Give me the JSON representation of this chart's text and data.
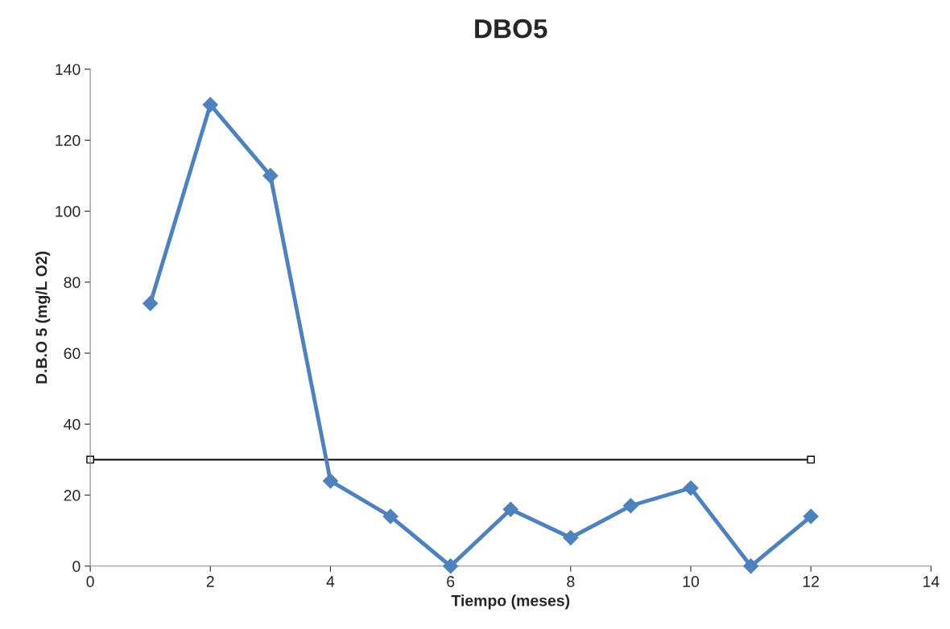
{
  "chart_data": {
    "type": "line",
    "title": "DBO5",
    "xlabel": "Tiempo (meses)",
    "ylabel": "D.B.O 5 (mg/L O2)",
    "x": [
      1,
      2,
      3,
      4,
      5,
      6,
      7,
      8,
      9,
      10,
      11,
      12
    ],
    "series": [
      {
        "color": "#4f81bd",
        "marker": "diamond",
        "values": [
          74,
          130,
          110,
          24,
          14,
          0,
          16,
          8,
          17,
          22,
          0,
          14
        ]
      },
      {
        "color": "#000000",
        "marker": "square",
        "x": [
          0,
          12
        ],
        "values": [
          30,
          30
        ]
      }
    ],
    "xlim": [
      0,
      14
    ],
    "xticks": [
      0,
      2,
      4,
      6,
      8,
      10,
      12,
      14
    ],
    "ylim": [
      0,
      140
    ],
    "yticks": [
      0,
      20,
      40,
      60,
      80,
      100,
      120,
      140
    ],
    "grid": false,
    "line_style": "solid"
  }
}
